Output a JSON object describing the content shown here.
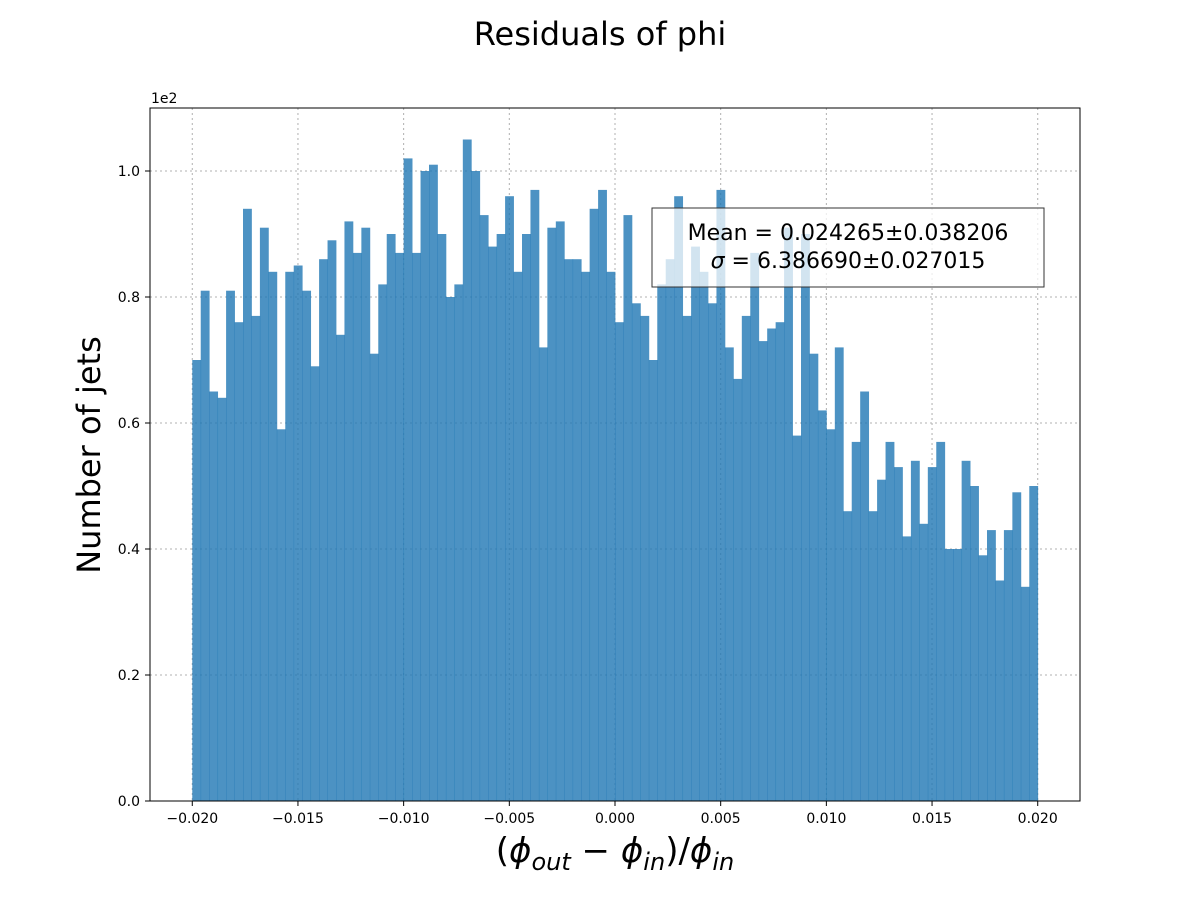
{
  "chart_data": {
    "type": "bar",
    "title": "Residuals of phi",
    "xlabel_parts": [
      "(",
      "ϕ",
      "out",
      " − ",
      "ϕ",
      "in",
      ")/",
      "ϕ",
      "in"
    ],
    "ylabel": "Number of jets",
    "y_offset_text": "1e2",
    "xlim": [
      -0.022,
      0.022
    ],
    "ylim": [
      0,
      1.1
    ],
    "grid": true,
    "bar_color": "#1f77b4",
    "bar_opacity": 0.8,
    "bin_edges_range": [
      -0.02,
      0.02
    ],
    "bin_width": 0.0004,
    "x_ticks": [
      -0.02,
      -0.015,
      -0.01,
      -0.005,
      0.0,
      0.005,
      0.01,
      0.015,
      0.02
    ],
    "x_tick_labels": [
      "−0.020",
      "−0.015",
      "−0.010",
      "−0.005",
      "0.000",
      "0.005",
      "0.010",
      "0.015",
      "0.020"
    ],
    "y_ticks": [
      0.0,
      0.2,
      0.4,
      0.6,
      0.8,
      1.0
    ],
    "y_tick_labels": [
      "0.0",
      "0.2",
      "0.4",
      "0.6",
      "0.8",
      "1.0"
    ],
    "values": [
      0.7,
      0.81,
      0.65,
      0.64,
      0.81,
      0.76,
      0.94,
      0.77,
      0.91,
      0.84,
      0.59,
      0.84,
      0.85,
      0.81,
      0.69,
      0.86,
      0.89,
      0.74,
      0.92,
      0.87,
      0.91,
      0.71,
      0.82,
      0.9,
      0.87,
      1.02,
      0.87,
      1.0,
      1.01,
      0.9,
      0.8,
      0.82,
      1.05,
      1.0,
      0.93,
      0.88,
      0.9,
      0.96,
      0.84,
      0.9,
      0.97,
      0.72,
      0.91,
      0.92,
      0.86,
      0.86,
      0.84,
      0.94,
      0.97,
      0.84,
      0.76,
      0.93,
      0.79,
      0.77,
      0.7,
      0.82,
      0.86,
      0.96,
      0.77,
      0.88,
      0.84,
      0.79,
      0.97,
      0.72,
      0.67,
      0.77,
      0.87,
      0.73,
      0.75,
      0.76,
      0.91,
      0.58,
      0.9,
      0.71,
      0.62,
      0.59,
      0.72,
      0.46,
      0.57,
      0.65,
      0.46,
      0.51,
      0.57,
      0.53,
      0.42,
      0.54,
      0.44,
      0.53,
      0.57,
      0.4,
      0.4,
      0.54,
      0.5,
      0.39,
      0.43,
      0.35,
      0.43,
      0.49,
      0.34,
      0.5
    ],
    "stats_box": {
      "line1": "Mean = 0.024265±0.038206",
      "line2_symbol": "σ",
      "line2_rest": " = 6.386690±0.027015",
      "placement": "upper-right"
    }
  }
}
